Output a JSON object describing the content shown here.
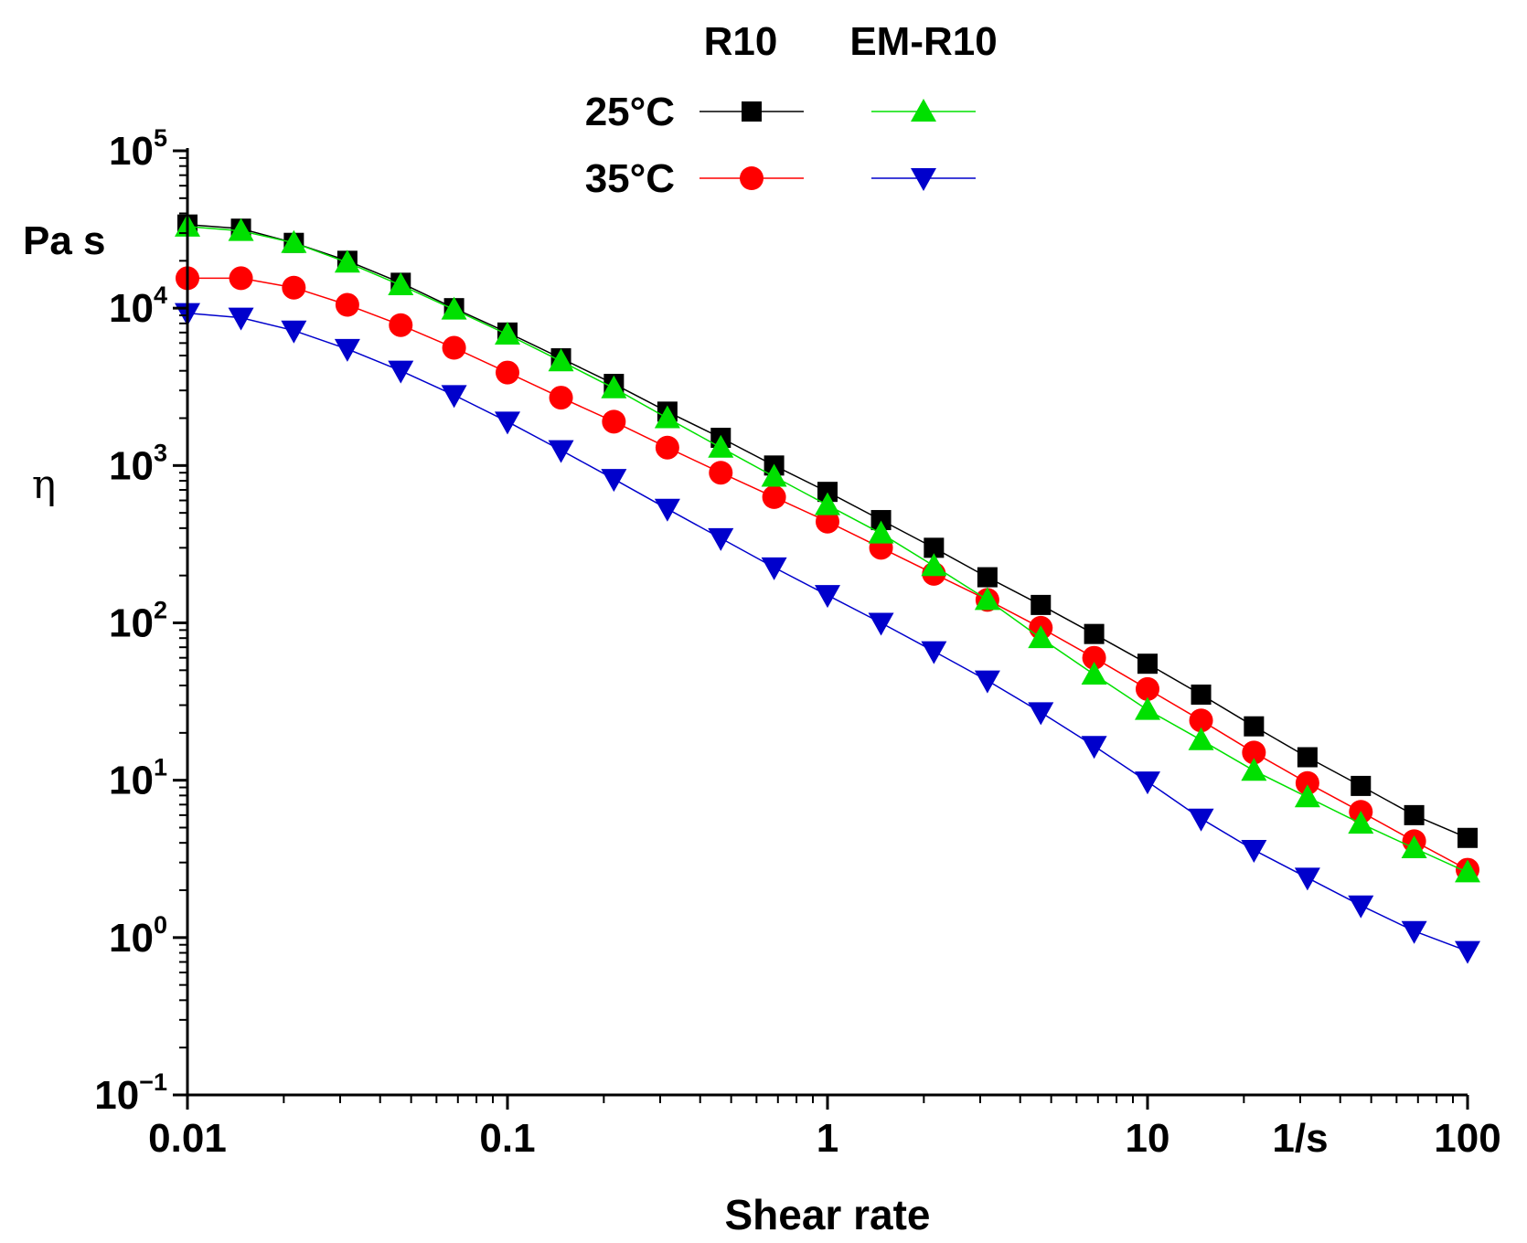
{
  "chart_data": {
    "type": "line",
    "x_scale": "log",
    "y_scale": "log",
    "xlim": [
      0.01,
      100
    ],
    "ylim": [
      0.1,
      100000
    ],
    "xlabel": "Shear rate",
    "xunit": "1/s",
    "ylabel": "η",
    "yunit": "Pa s",
    "x_tick_labels": [
      "0.01",
      "0.1",
      "1",
      "10",
      "1/s",
      "100"
    ],
    "y_ticks": [
      {
        "base": "10",
        "exp": "−1"
      },
      {
        "base": "10",
        "exp": "0"
      },
      {
        "base": "10",
        "exp": "1"
      },
      {
        "base": "10",
        "exp": "2"
      },
      {
        "base": "10",
        "exp": "3"
      },
      {
        "base": "10",
        "exp": "4"
      },
      {
        "base": "10",
        "exp": "5"
      }
    ],
    "legend": {
      "placement": "top-center",
      "column_headers": [
        "R10",
        "EM-R10"
      ],
      "row_labels": [
        "25°C",
        "35°C"
      ]
    },
    "x": [
      0.01,
      0.0147,
      0.0215,
      0.0316,
      0.0464,
      0.0681,
      0.1,
      0.147,
      0.215,
      0.316,
      0.464,
      0.681,
      1,
      1.47,
      2.15,
      3.16,
      4.64,
      6.81,
      10,
      14.7,
      21.5,
      31.6,
      46.4,
      68.1,
      100
    ],
    "series": [
      {
        "name": "R10 25°C",
        "color": "#000000",
        "marker": "square",
        "values": [
          34000,
          32000,
          26000,
          20000,
          14500,
          10000,
          7000,
          4800,
          3300,
          2200,
          1500,
          1000,
          680,
          450,
          300,
          195,
          130,
          85,
          55,
          35,
          22,
          14,
          9.2,
          6,
          4.3
        ]
      },
      {
        "name": "R10 35°C",
        "color": "#ff0000",
        "marker": "circle",
        "values": [
          15500,
          15500,
          13500,
          10500,
          7800,
          5600,
          3900,
          2700,
          1900,
          1300,
          900,
          630,
          440,
          300,
          205,
          140,
          93,
          60,
          38,
          24,
          15,
          9.6,
          6.3,
          4.1,
          2.7
        ]
      },
      {
        "name": "EM-R10 25°C",
        "color": "#00e000",
        "marker": "triangle-up",
        "values": [
          33000,
          31000,
          26000,
          19500,
          14000,
          9800,
          6800,
          4600,
          3100,
          2000,
          1300,
          850,
          560,
          370,
          230,
          140,
          80,
          47,
          28,
          18,
          11.5,
          7.8,
          5.3,
          3.7,
          2.6
        ]
      },
      {
        "name": "EM-R10 35°C",
        "color": "#0000cc",
        "marker": "triangle-down",
        "values": [
          9300,
          8700,
          7200,
          5500,
          4000,
          2800,
          1900,
          1250,
          820,
          530,
          345,
          225,
          150,
          100,
          66,
          43,
          27,
          16.5,
          9.8,
          5.7,
          3.6,
          2.4,
          1.6,
          1.1,
          0.82
        ]
      }
    ]
  }
}
